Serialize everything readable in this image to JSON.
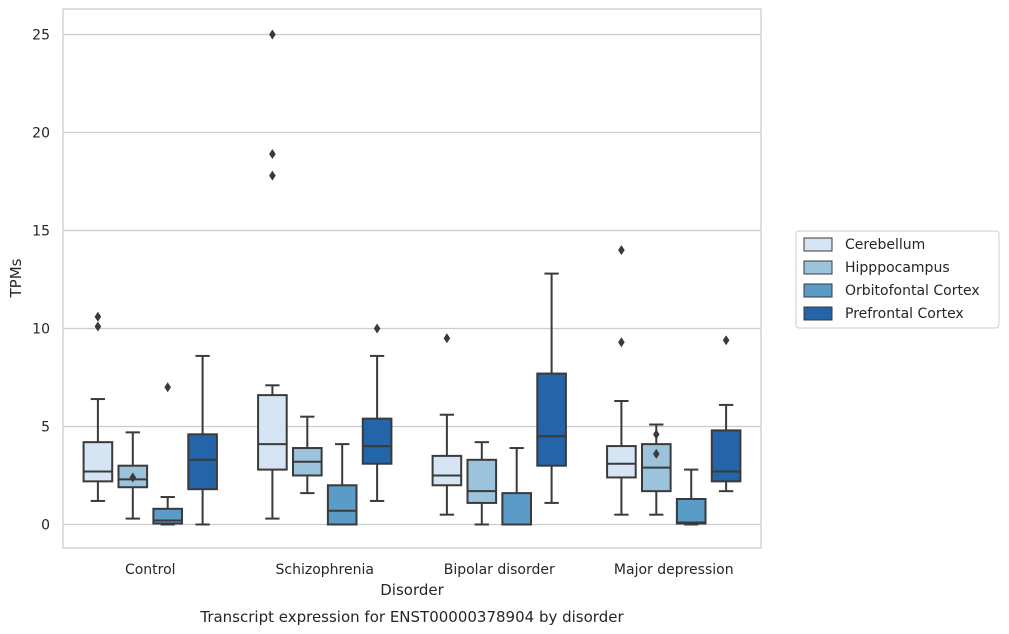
{
  "chart_data": {
    "type": "box",
    "xlabel": "Disorder",
    "ylabel": "TPMs",
    "caption": "Transcript expression for ENST00000378904 by disorder",
    "ylim": [
      -1.2,
      26.3
    ],
    "yticks": [
      0,
      5,
      10,
      15,
      20,
      25
    ],
    "grid": "horizontal",
    "legend_position": "right",
    "categories": [
      "Control",
      "Schizophrenia",
      "Bipolar disorder",
      "Major depression"
    ],
    "series": [
      {
        "name": "Cerebellum",
        "color": "#d6e5f4",
        "boxes": [
          {
            "whislo": 1.2,
            "q1": 2.2,
            "med": 2.7,
            "q3": 4.2,
            "whishi": 6.4,
            "fliers": [
              10.1,
              10.6
            ]
          },
          {
            "whislo": 0.3,
            "q1": 2.8,
            "med": 4.1,
            "q3": 6.6,
            "whishi": 7.1,
            "fliers": [
              17.8,
              18.9,
              25.0
            ]
          },
          {
            "whislo": 0.5,
            "q1": 2.0,
            "med": 2.5,
            "q3": 3.5,
            "whishi": 5.6,
            "fliers": [
              9.5
            ]
          },
          {
            "whislo": 0.5,
            "q1": 2.4,
            "med": 3.1,
            "q3": 4.0,
            "whishi": 6.3,
            "fliers": [
              9.3,
              14.0
            ]
          }
        ]
      },
      {
        "name": "Hipppocampus",
        "color": "#9cc3dc",
        "boxes": [
          {
            "whislo": 0.3,
            "q1": 1.9,
            "med": 2.3,
            "q3": 3.0,
            "whishi": 4.7,
            "fliers": [
              2.4
            ]
          },
          {
            "whislo": 1.6,
            "q1": 2.5,
            "med": 3.2,
            "q3": 3.9,
            "whishi": 5.5,
            "fliers": []
          },
          {
            "whislo": 0.0,
            "q1": 1.1,
            "med": 1.7,
            "q3": 3.3,
            "whishi": 4.2,
            "fliers": []
          },
          {
            "whislo": 0.5,
            "q1": 1.7,
            "med": 2.9,
            "q3": 4.1,
            "whishi": 5.1,
            "fliers": [
              3.6,
              4.6
            ]
          }
        ]
      },
      {
        "name": "Orbitofontal Cortex",
        "color": "#5b9bc8",
        "boxes": [
          {
            "whislo": 0.0,
            "q1": 0.05,
            "med": 0.2,
            "q3": 0.8,
            "whishi": 1.4,
            "fliers": [
              7.0
            ]
          },
          {
            "whislo": 0.0,
            "q1": 0.0,
            "med": 0.7,
            "q3": 2.0,
            "whishi": 4.1,
            "fliers": []
          },
          {
            "whislo": 0.0,
            "q1": 0.0,
            "med": 0.0,
            "q3": 1.6,
            "whishi": 3.9,
            "fliers": []
          },
          {
            "whislo": 0.0,
            "q1": 0.05,
            "med": 0.1,
            "q3": 1.3,
            "whishi": 2.8,
            "fliers": []
          }
        ]
      },
      {
        "name": "Prefrontal Cortex",
        "color": "#2464a8",
        "boxes": [
          {
            "whislo": 0.0,
            "q1": 1.8,
            "med": 3.3,
            "q3": 4.6,
            "whishi": 8.6,
            "fliers": []
          },
          {
            "whislo": 1.2,
            "q1": 3.1,
            "med": 4.0,
            "q3": 5.4,
            "whishi": 8.6,
            "fliers": [
              10.0
            ]
          },
          {
            "whislo": 1.1,
            "q1": 3.0,
            "med": 4.5,
            "q3": 7.7,
            "whishi": 12.8,
            "fliers": []
          },
          {
            "whislo": 1.7,
            "q1": 2.2,
            "med": 2.7,
            "q3": 4.8,
            "whishi": 6.1,
            "fliers": [
              9.4
            ]
          }
        ]
      }
    ]
  }
}
